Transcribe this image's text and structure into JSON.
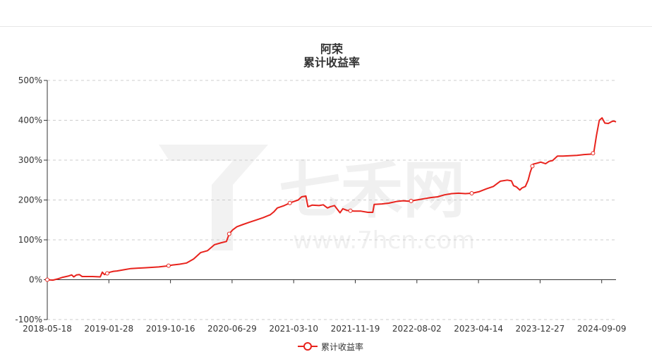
{
  "chart_data": {
    "type": "line",
    "title": "阿荣",
    "subtitle": "累计收益率",
    "xlabel": "",
    "ylabel": "",
    "ylim": [
      -100,
      500
    ],
    "y_ticks": [
      "-100%",
      "0%",
      "100%",
      "200%",
      "300%",
      "400%",
      "500%"
    ],
    "x_ticks": [
      "2018-05-18",
      "2019-01-28",
      "2019-10-16",
      "2020-06-29",
      "2021-03-10",
      "2021-11-19",
      "2022-08-02",
      "2023-04-14",
      "2023-12-27",
      "2024-09-09"
    ],
    "grid": true,
    "legend_position": "bottom",
    "watermark": "七禾网 www.7hcn.com",
    "series": [
      {
        "name": "累计收益率",
        "color": "#e8231d",
        "points": [
          [
            0.0,
            0
          ],
          [
            0.8,
            -1
          ],
          [
            1.5,
            2
          ],
          [
            2.2,
            6
          ],
          [
            3.0,
            9
          ],
          [
            3.5,
            12
          ],
          [
            3.8,
            7
          ],
          [
            4.2,
            12
          ],
          [
            4.6,
            13
          ],
          [
            5.0,
            8
          ],
          [
            6.5,
            8
          ],
          [
            7.6,
            7
          ],
          [
            7.9,
            19
          ],
          [
            8.2,
            13
          ],
          [
            8.6,
            16
          ],
          [
            9.0,
            19
          ],
          [
            9.5,
            21
          ],
          [
            10.0,
            22
          ],
          [
            11.0,
            25
          ],
          [
            12.0,
            28
          ],
          [
            13.0,
            29
          ],
          [
            14.0,
            30
          ],
          [
            15.0,
            31
          ],
          [
            16.0,
            32
          ],
          [
            17.0,
            34
          ],
          [
            18.0,
            37
          ],
          [
            19.0,
            39
          ],
          [
            20.0,
            42
          ],
          [
            21.0,
            52
          ],
          [
            22.0,
            68
          ],
          [
            23.0,
            73
          ],
          [
            24.0,
            88
          ],
          [
            25.0,
            93
          ],
          [
            25.7,
            96
          ],
          [
            26.1,
            115
          ],
          [
            26.6,
            125
          ],
          [
            27.2,
            133
          ],
          [
            28.0,
            138
          ],
          [
            29.0,
            144
          ],
          [
            30.0,
            150
          ],
          [
            31.0,
            156
          ],
          [
            32.0,
            163
          ],
          [
            32.5,
            170
          ],
          [
            33.0,
            180
          ],
          [
            34.0,
            186
          ],
          [
            35.0,
            194
          ],
          [
            36.0,
            200
          ],
          [
            36.5,
            208
          ],
          [
            37.1,
            210
          ],
          [
            37.4,
            183
          ],
          [
            38.0,
            187
          ],
          [
            39.0,
            186
          ],
          [
            39.6,
            188
          ],
          [
            40.2,
            180
          ],
          [
            40.6,
            183
          ],
          [
            41.2,
            186
          ],
          [
            41.6,
            177
          ],
          [
            42.0,
            168
          ],
          [
            42.4,
            178
          ],
          [
            43.0,
            174
          ],
          [
            44.0,
            172
          ],
          [
            45.0,
            172
          ],
          [
            46.0,
            169
          ],
          [
            46.7,
            169
          ],
          [
            46.9,
            189
          ],
          [
            48.0,
            190
          ],
          [
            49.0,
            192
          ],
          [
            50.0,
            196
          ],
          [
            51.0,
            198
          ],
          [
            52.0,
            197
          ],
          [
            53.0,
            200
          ],
          [
            54.0,
            203
          ],
          [
            55.0,
            206
          ],
          [
            56.0,
            208
          ],
          [
            57.0,
            213
          ],
          [
            58.0,
            216
          ],
          [
            59.0,
            217
          ],
          [
            60.0,
            216
          ],
          [
            61.0,
            217
          ],
          [
            62.0,
            221
          ],
          [
            63.0,
            228
          ],
          [
            64.0,
            234
          ],
          [
            64.6,
            242
          ],
          [
            65.0,
            247
          ],
          [
            66.0,
            250
          ],
          [
            66.6,
            248
          ],
          [
            66.9,
            236
          ],
          [
            67.3,
            233
          ],
          [
            67.8,
            225
          ],
          [
            68.1,
            230
          ],
          [
            68.6,
            234
          ],
          [
            69.0,
            250
          ],
          [
            69.3,
            270
          ],
          [
            69.7,
            290
          ],
          [
            70.2,
            292
          ],
          [
            70.8,
            295
          ],
          [
            71.5,
            291
          ],
          [
            72.0,
            297
          ],
          [
            72.5,
            299
          ],
          [
            73.2,
            310
          ],
          [
            74.0,
            310
          ],
          [
            75.0,
            311
          ],
          [
            76.0,
            312
          ],
          [
            77.0,
            314
          ],
          [
            78.0,
            315
          ],
          [
            78.4,
            318
          ],
          [
            78.8,
            362
          ],
          [
            79.2,
            400
          ],
          [
            79.6,
            406
          ],
          [
            80.0,
            393
          ],
          [
            80.5,
            392
          ],
          [
            81.0,
            397
          ],
          [
            81.3,
            398
          ],
          [
            81.6,
            396
          ]
        ],
        "markers_at": [
          0.0,
          8.6,
          17.4,
          26.1,
          34.8,
          43.5,
          52.2,
          60.9,
          69.6,
          78.3
        ]
      }
    ]
  }
}
